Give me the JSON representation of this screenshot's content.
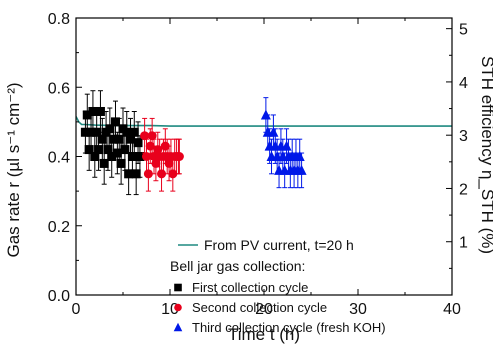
{
  "chart_data": {
    "type": "scatter",
    "xlabel": "Time t (h)",
    "ylabel_left": "Gas rate r (µl s⁻¹ cm⁻²)",
    "ylabel_right": "STH efficiency η_STH (%)",
    "xlim": [
      0,
      40
    ],
    "ylim_left": [
      0.0,
      0.8
    ],
    "ylim_right": [
      0,
      5.2
    ],
    "x_ticks": [
      "0",
      "10",
      "20",
      "30",
      "40"
    ],
    "y_ticks_left": [
      "0.0",
      "0.2",
      "0.4",
      "0.6",
      "0.8"
    ],
    "y_ticks_right": [
      "1",
      "2",
      "3",
      "4",
      "5"
    ],
    "grid": false,
    "legend_position": "lower-right",
    "legend_heading": "Bell jar gas collection:",
    "colors": {
      "pv_line": "#1f8a80",
      "first": "#000000",
      "second": "#e8001c",
      "third": "#0018e8"
    },
    "series": [
      {
        "name": "From PV current, t=20 h",
        "kind": "line",
        "axis": "right",
        "x": [
          0,
          0.3,
          0.6,
          1,
          2,
          4,
          6,
          8,
          10,
          12,
          15,
          20,
          25,
          30,
          35,
          40
        ],
        "y": [
          3.35,
          3.25,
          3.2,
          3.2,
          3.19,
          3.18,
          3.18,
          3.18,
          3.17,
          3.17,
          3.17,
          3.17,
          3.17,
          3.17,
          3.17,
          3.17
        ]
      },
      {
        "name": "First collection cycle",
        "kind": "errorbar",
        "marker": "square",
        "axis": "left",
        "x": [
          1.0,
          1.2,
          1.4,
          1.6,
          1.8,
          2.0,
          2.2,
          2.4,
          2.6,
          2.8,
          3.0,
          3.2,
          3.4,
          3.6,
          3.8,
          4.0,
          4.2,
          4.4,
          4.6,
          4.8,
          5.0,
          5.2,
          5.4,
          5.6,
          5.8,
          6.0,
          6.2,
          6.4,
          6.6,
          6.8
        ],
        "y": [
          0.47,
          0.52,
          0.42,
          0.47,
          0.53,
          0.4,
          0.47,
          0.42,
          0.53,
          0.45,
          0.38,
          0.47,
          0.42,
          0.48,
          0.4,
          0.45,
          0.5,
          0.41,
          0.45,
          0.38,
          0.48,
          0.42,
          0.47,
          0.35,
          0.45,
          0.4,
          0.47,
          0.35,
          0.44,
          0.4
        ],
        "err": 0.06
      },
      {
        "name": "Second collection cycle",
        "kind": "errorbar",
        "marker": "circle",
        "axis": "left",
        "x": [
          7.3,
          7.5,
          7.7,
          7.9,
          8.1,
          8.3,
          8.5,
          8.7,
          8.9,
          9.1,
          9.3,
          9.5,
          9.7,
          9.9,
          10.1,
          10.3,
          10.5,
          10.7,
          10.9,
          11.0
        ],
        "y": [
          0.46,
          0.4,
          0.35,
          0.43,
          0.46,
          0.4,
          0.38,
          0.42,
          0.4,
          0.35,
          0.4,
          0.43,
          0.4,
          0.38,
          0.4,
          0.35,
          0.4,
          0.4,
          0.4,
          0.4
        ],
        "err": 0.05
      },
      {
        "name": "Third collection cycle (fresh KOH)",
        "kind": "errorbar",
        "marker": "triangle",
        "axis": "left",
        "x": [
          20.2,
          20.4,
          20.6,
          20.8,
          21.0,
          21.2,
          21.4,
          21.6,
          21.8,
          22.0,
          22.2,
          22.4,
          22.6,
          22.8,
          23.0,
          23.2,
          23.4,
          23.6,
          23.8,
          24.0
        ],
        "y": [
          0.52,
          0.47,
          0.43,
          0.4,
          0.47,
          0.43,
          0.4,
          0.36,
          0.43,
          0.4,
          0.36,
          0.43,
          0.4,
          0.36,
          0.4,
          0.36,
          0.4,
          0.36,
          0.4,
          0.36
        ],
        "err": 0.05
      }
    ]
  }
}
